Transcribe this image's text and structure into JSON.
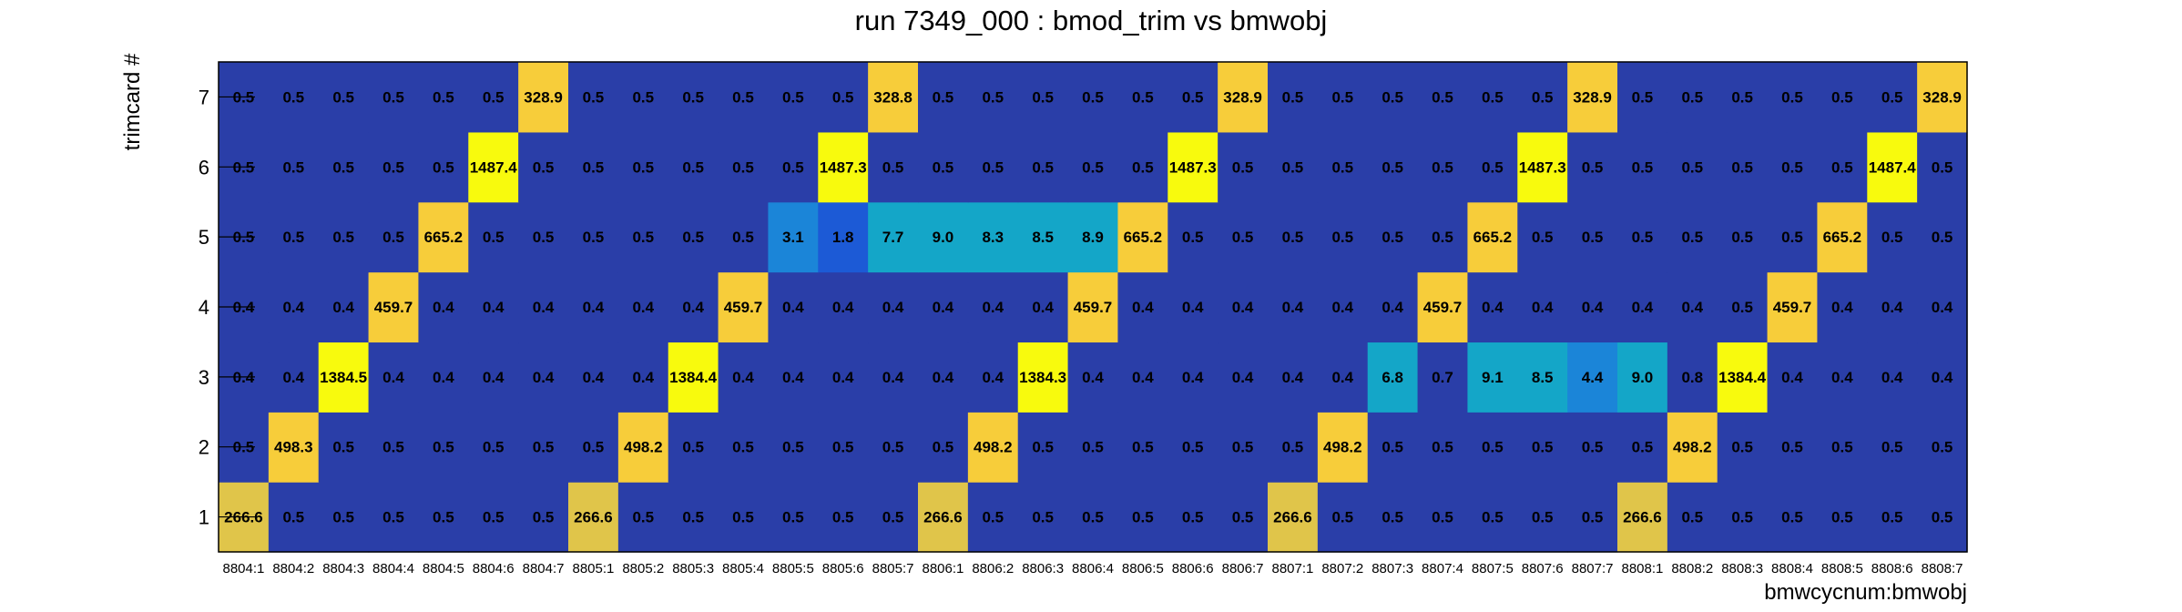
{
  "chart_data": {
    "type": "heatmap",
    "title": "run 7349_000 : bmod_trim vs bmwobj",
    "xlabel": "bmwcycnum:bmwobj",
    "ylabel": "trimcard #",
    "x_categories": [
      "8804:1",
      "8804:2",
      "8804:3",
      "8804:4",
      "8804:5",
      "8804:6",
      "8804:7",
      "8805:1",
      "8805:2",
      "8805:3",
      "8805:4",
      "8805:5",
      "8805:6",
      "8805:7",
      "8806:1",
      "8806:2",
      "8806:3",
      "8806:4",
      "8806:5",
      "8806:6",
      "8806:7",
      "8807:1",
      "8807:2",
      "8807:3",
      "8807:4",
      "8807:5",
      "8807:6",
      "8807:7",
      "8808:1",
      "8808:2",
      "8808:3",
      "8808:4",
      "8808:5",
      "8808:6",
      "8808:7"
    ],
    "y_categories": [
      "1",
      "2",
      "3",
      "4",
      "5",
      "6",
      "7"
    ],
    "values": [
      [
        266.6,
        0.5,
        0.5,
        0.5,
        0.5,
        0.5,
        0.5,
        266.6,
        0.5,
        0.5,
        0.5,
        0.5,
        0.5,
        0.5,
        266.6,
        0.5,
        0.5,
        0.5,
        0.5,
        0.5,
        0.5,
        266.6,
        0.5,
        0.5,
        0.5,
        0.5,
        0.5,
        0.5,
        266.6,
        0.5,
        0.5,
        0.5,
        0.5,
        0.5,
        0.5
      ],
      [
        0.5,
        498.3,
        0.5,
        0.5,
        0.5,
        0.5,
        0.5,
        0.5,
        498.2,
        0.5,
        0.5,
        0.5,
        0.5,
        0.5,
        0.5,
        498.2,
        0.5,
        0.5,
        0.5,
        0.5,
        0.5,
        0.5,
        498.2,
        0.5,
        0.5,
        0.5,
        0.5,
        0.5,
        0.5,
        498.2,
        0.5,
        0.5,
        0.5,
        0.5,
        0.5
      ],
      [
        0.4,
        0.4,
        1384.5,
        0.4,
        0.4,
        0.4,
        0.4,
        0.4,
        0.4,
        1384.4,
        0.4,
        0.4,
        0.4,
        0.4,
        0.4,
        0.4,
        1384.3,
        0.4,
        0.4,
        0.4,
        0.4,
        0.4,
        0.4,
        6.8,
        0.7,
        9.1,
        8.5,
        4.4,
        9.0,
        0.8,
        1384.4,
        0.4,
        0.4,
        0.4,
        0.4
      ],
      [
        0.4,
        0.4,
        0.4,
        459.7,
        0.4,
        0.4,
        0.4,
        0.4,
        0.4,
        0.4,
        459.7,
        0.4,
        0.4,
        0.4,
        0.4,
        0.4,
        0.4,
        459.7,
        0.4,
        0.4,
        0.4,
        0.4,
        0.4,
        0.4,
        459.7,
        0.4,
        0.4,
        0.4,
        0.4,
        0.4,
        0.5,
        459.7,
        0.4,
        0.4,
        0.4
      ],
      [
        0.5,
        0.5,
        0.5,
        0.5,
        665.2,
        0.5,
        0.5,
        0.5,
        0.5,
        0.5,
        0.5,
        3.1,
        1.8,
        7.7,
        9.0,
        8.3,
        8.5,
        8.9,
        665.2,
        0.5,
        0.5,
        0.5,
        0.5,
        0.5,
        0.5,
        665.2,
        0.5,
        0.5,
        0.5,
        0.5,
        0.5,
        0.5,
        665.2,
        0.5,
        0.5
      ],
      [
        0.5,
        0.5,
        0.5,
        0.5,
        0.5,
        1487.4,
        0.5,
        0.5,
        0.5,
        0.5,
        0.5,
        0.5,
        1487.3,
        0.5,
        0.5,
        0.5,
        0.5,
        0.5,
        0.5,
        1487.3,
        0.5,
        0.5,
        0.5,
        0.5,
        0.5,
        0.5,
        1487.3,
        0.5,
        0.5,
        0.5,
        0.5,
        0.5,
        0.5,
        1487.4,
        0.5
      ],
      [
        0.5,
        0.5,
        0.5,
        0.5,
        0.5,
        0.5,
        328.9,
        0.5,
        0.5,
        0.5,
        0.5,
        0.5,
        0.5,
        328.8,
        0.5,
        0.5,
        0.5,
        0.5,
        0.5,
        0.5,
        328.9,
        0.5,
        0.5,
        0.5,
        0.5,
        0.5,
        0.5,
        328.9,
        0.5,
        0.5,
        0.5,
        0.5,
        0.5,
        0.5,
        328.9
      ]
    ],
    "palette": {
      "background": "#2a3ea8",
      "low": "#1c5ad6",
      "mid_low": "#1b85d8",
      "mid": "#14a6c8",
      "high": "#e0c54a",
      "very_high": "#f7cd3a",
      "max": "#f8fa0d"
    }
  }
}
